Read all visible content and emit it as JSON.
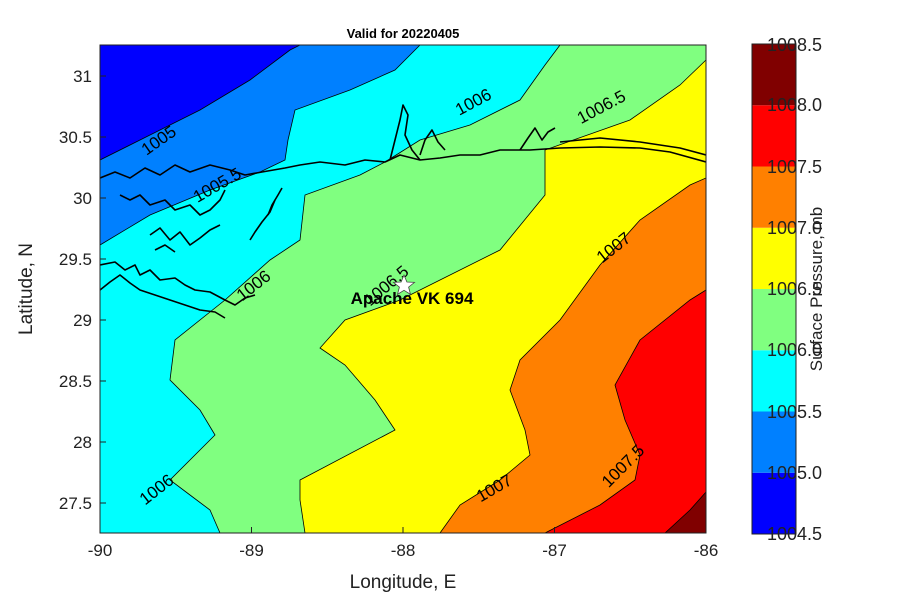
{
  "map": {
    "title": "Valid for 20220405",
    "xlabel": "Longitude, E",
    "ylabel": "Latitude, N",
    "x_ticks": [
      "-90",
      "-89",
      "-88",
      "-87",
      "-86"
    ],
    "y_ticks": [
      "27.5",
      "28",
      "28.5",
      "29",
      "29.5",
      "30",
      "30.5",
      "31"
    ],
    "station": {
      "name": "Apache VK 694",
      "lon": -88.0,
      "lat": 29.3
    },
    "contour_labels": [
      "1005",
      "1005.5",
      "1006",
      "1006",
      "1006",
      "1006.5",
      "1006.5",
      "1007",
      "1007",
      "1007.5"
    ]
  },
  "colorbar": {
    "title": "Surface Pressure, mb",
    "ticks": [
      "1004.5",
      "1005.0",
      "1005.5",
      "1006.0",
      "1006.5",
      "1007.0",
      "1007.5",
      "1008.0",
      "1008.5"
    ],
    "colors": [
      "#0000ff",
      "#0080ff",
      "#00ffff",
      "#80ff80",
      "#ffff00",
      "#ff8000",
      "#ff0000",
      "#800000"
    ]
  },
  "fills": {
    "c1005": "#0000ff",
    "c1005_5": "#0080ff",
    "c1006": "#00ffff",
    "c1006_5": "#80ff80",
    "c1007": "#ffff00",
    "c1007_5": "#ff8000",
    "c1008": "#ff0000",
    "c1008_5": "#800000"
  }
}
